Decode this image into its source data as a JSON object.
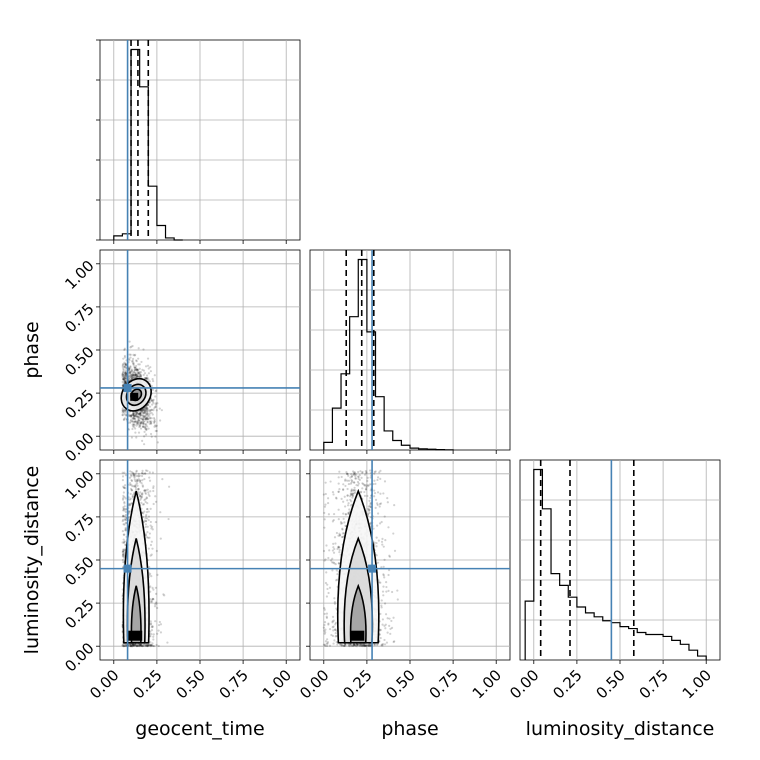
{
  "chart_data": {
    "type": "corner",
    "title": "",
    "parameters": [
      "geocent_time",
      "phase",
      "luminosity_distance"
    ],
    "axis_range": [
      -0.08,
      1.08
    ],
    "ticks": [
      0.0,
      0.25,
      0.5,
      0.75,
      1.0
    ],
    "tick_labels": [
      "0.00",
      "0.25",
      "0.50",
      "0.75",
      "1.00"
    ],
    "truths": {
      "geocent_time": 0.08,
      "phase": 0.28,
      "luminosity_distance": 0.45
    },
    "grid": true,
    "line_color": "#4682b4",
    "histograms": {
      "geocent_time": {
        "bins": [
          0.0,
          0.05,
          0.1,
          0.15,
          0.2,
          0.25,
          0.3,
          0.35,
          0.4
        ],
        "counts": [
          0.02,
          0.03,
          0.92,
          0.74,
          0.26,
          0.07,
          0.01,
          0.0
        ],
        "quantiles": [
          0.1,
          0.14,
          0.2
        ]
      },
      "phase": {
        "bins": [
          0.0,
          0.05,
          0.1,
          0.15,
          0.2,
          0.25,
          0.3,
          0.35,
          0.4,
          0.45,
          0.5,
          0.55,
          0.6,
          0.65,
          0.7,
          0.75
        ],
        "counts": [
          0.04,
          0.22,
          0.4,
          0.7,
          1.0,
          0.62,
          0.28,
          0.1,
          0.05,
          0.025,
          0.01,
          0.006,
          0.004,
          0.002,
          0.001
        ],
        "quantiles": [
          0.13,
          0.22,
          0.29
        ]
      },
      "luminosity_distance": {
        "bins": [
          -0.05,
          0.0,
          0.05,
          0.1,
          0.15,
          0.2,
          0.25,
          0.3,
          0.35,
          0.4,
          0.45,
          0.5,
          0.55,
          0.6,
          0.65,
          0.7,
          0.75,
          0.8,
          0.85,
          0.9,
          0.95,
          1.0
        ],
        "counts": [
          0.3,
          0.97,
          0.77,
          0.44,
          0.38,
          0.32,
          0.27,
          0.24,
          0.22,
          0.2,
          0.19,
          0.17,
          0.16,
          0.14,
          0.13,
          0.13,
          0.12,
          0.1,
          0.08,
          0.05,
          0.02
        ],
        "quantiles": [
          0.04,
          0.21,
          0.58
        ]
      }
    },
    "pairs": [
      {
        "x": "geocent_time",
        "y": "phase",
        "center": [
          0.13,
          0.24
        ],
        "spread": [
          0.05,
          0.09
        ],
        "x_min": 0.05
      },
      {
        "x": "geocent_time",
        "y": "luminosity_distance",
        "center": [
          0.13,
          0.3
        ],
        "spread": [
          0.05,
          0.28
        ],
        "x_min": 0.05
      },
      {
        "x": "phase",
        "y": "luminosity_distance",
        "center": [
          0.2,
          0.3
        ],
        "spread": [
          0.08,
          0.28
        ],
        "x_min": 0.0
      }
    ]
  }
}
